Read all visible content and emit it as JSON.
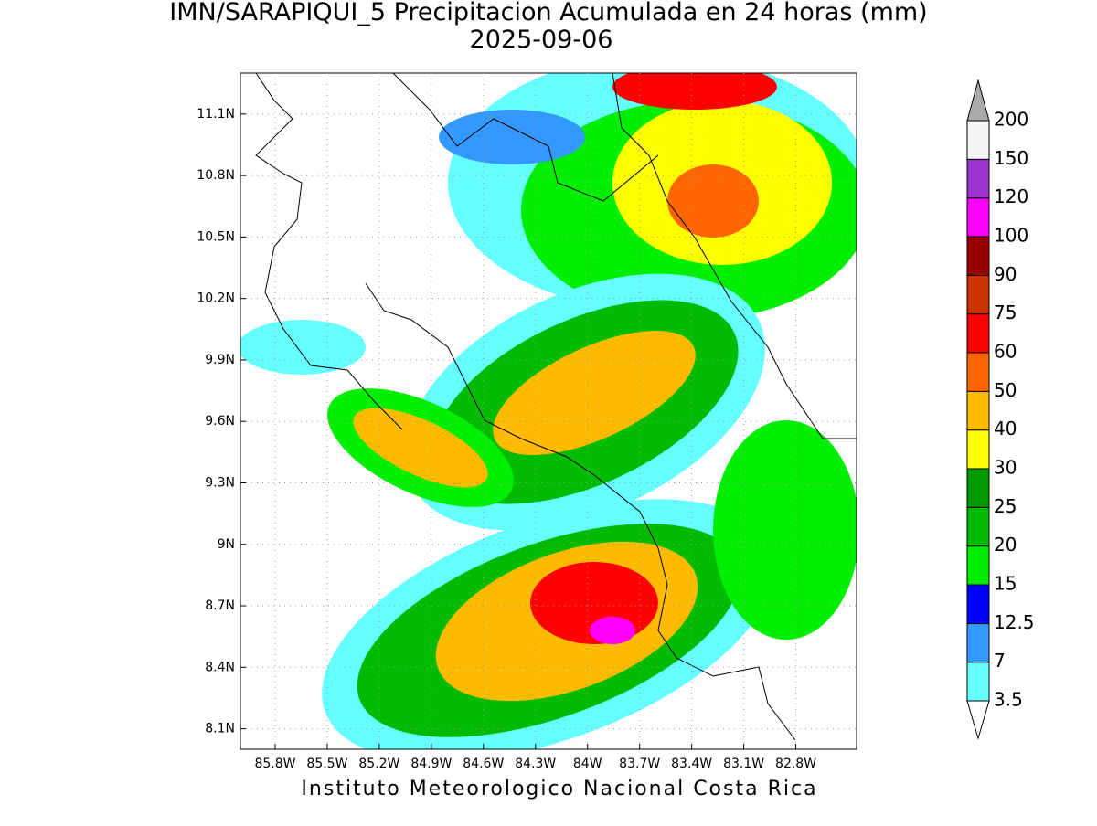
{
  "map": {
    "title": "IMN/SARAPIQUI_5 Precipitacion Acumulada en 24 horas (mm)",
    "subtitle": "2025-09-06",
    "footer": "Instituto Meteorologico Nacional Costa Rica",
    "xlim": [
      -86.0,
      -82.45
    ],
    "ylim": [
      8.0,
      11.3
    ],
    "xticks": [
      {
        "value": -85.8,
        "label": "85.8W"
      },
      {
        "value": -85.5,
        "label": "85.5W"
      },
      {
        "value": -85.2,
        "label": "85.2W"
      },
      {
        "value": -84.9,
        "label": "84.9W"
      },
      {
        "value": -84.6,
        "label": "84.6W"
      },
      {
        "value": -84.3,
        "label": "84.3W"
      },
      {
        "value": -84.0,
        "label": "84W"
      },
      {
        "value": -83.7,
        "label": "83.7W"
      },
      {
        "value": -83.4,
        "label": "83.4W"
      },
      {
        "value": -83.1,
        "label": "83.1W"
      },
      {
        "value": -82.8,
        "label": "82.8W"
      }
    ],
    "yticks": [
      {
        "value": 8.1,
        "label": "8.1N"
      },
      {
        "value": 8.4,
        "label": "8.4N"
      },
      {
        "value": 8.7,
        "label": "8.7N"
      },
      {
        "value": 9.0,
        "label": "9N"
      },
      {
        "value": 9.3,
        "label": "9.3N"
      },
      {
        "value": 9.6,
        "label": "9.6N"
      },
      {
        "value": 9.9,
        "label": "9.9N"
      },
      {
        "value": 10.2,
        "label": "10.2N"
      },
      {
        "value": 10.5,
        "label": "10.5N"
      },
      {
        "value": 10.8,
        "label": "10.8N"
      },
      {
        "value": 11.1,
        "label": "11.1N"
      }
    ],
    "grid": true,
    "colorbar": {
      "levels": [
        3.5,
        7,
        12.5,
        15,
        20,
        25,
        30,
        40,
        50,
        60,
        75,
        90,
        100,
        120,
        150,
        200
      ],
      "colors": [
        "#ffffff",
        "#66ffff",
        "#3399ff",
        "#0000ff",
        "#00ee00",
        "#00bb00",
        "#009900",
        "#ffff00",
        "#ffbb00",
        "#ff6600",
        "#ff0000",
        "#cc3300",
        "#990000",
        "#ff00ff",
        "#9933cc",
        "#f5f5f5",
        "#aaaaaa"
      ]
    }
  }
}
